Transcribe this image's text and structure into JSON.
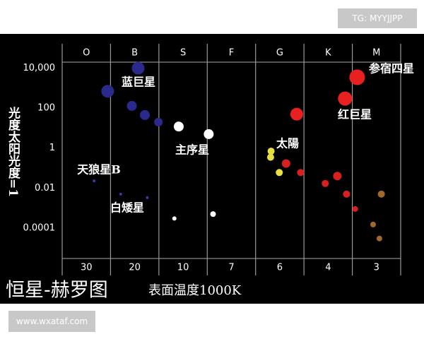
{
  "header": {
    "tag": "TG: MYYJJPP"
  },
  "footer": {
    "site": "www.wxataf.com"
  },
  "chart_data": {
    "type": "scatter",
    "title": "恒星-赫罗图",
    "x_label": "表面温度1000K",
    "y_label": "光度太阳光度=1",
    "categories": [
      "O",
      "B",
      "S",
      "F",
      "G",
      "K",
      "M"
    ],
    "temperatures": [
      30,
      20,
      10,
      7,
      6,
      4,
      3
    ],
    "xlim": [
      0,
      7
    ],
    "xticks": [
      0,
      1,
      2,
      3,
      4,
      5,
      6,
      7
    ],
    "ylim": [
      3e-06,
      20000
    ],
    "log_scale": true,
    "yticks": [
      {
        "value": 10000,
        "label": "10,000"
      },
      100,
      1,
      0.01,
      0.0001
    ],
    "annotations": [
      "蓝巨星",
      "参宿四星",
      "红巨星",
      "太陽",
      "主序星",
      "天狼星B",
      "白矮星"
    ],
    "series": [
      {
        "color": "#2a2a8c",
        "x": [
          0.94,
          1.57,
          1.44,
          1.71,
          1.99
        ],
        "values": [
          700,
          10000,
          130,
          45,
          20
        ],
        "sizes": [
          9,
          9,
          7,
          7,
          6
        ]
      },
      {
        "color": "#3a3aa8",
        "x": [
          0.66,
          1.21,
          1.76
        ],
        "values": [
          0.023,
          0.005,
          0.0033
        ],
        "sizes": [
          2,
          2,
          2
        ]
      },
      {
        "color": "#ffffff",
        "x": [
          2.41,
          3.03,
          2.32,
          3.12
        ],
        "values": [
          12,
          5,
          0.0003,
          0.0005
        ],
        "sizes": [
          7,
          7,
          3,
          4
        ]
      },
      {
        "color": "#e82020",
        "x": [
          4.85,
          5.85,
          6.1
        ],
        "values": [
          50,
          300,
          3500
        ],
        "sizes": [
          9,
          10,
          11
        ]
      },
      {
        "color": "#e8e040",
        "x": [
          4.32,
          4.31,
          4.49
        ],
        "values": [
          0.7,
          0.35,
          0.06
        ],
        "sizes": [
          5,
          5,
          5
        ]
      },
      {
        "color": "#d82020",
        "x": [
          4.63,
          4.93,
          5.44,
          5.69,
          5.88,
          6.06
        ],
        "values": [
          0.17,
          0.06,
          0.017,
          0.04,
          0.005,
          0.0009
        ],
        "sizes": [
          6,
          5,
          5,
          6,
          5,
          4
        ]
      },
      {
        "color": "#a0682a",
        "x": [
          6.6,
          6.43,
          6.56
        ],
        "values": [
          0.005,
          0.00015,
          3e-05
        ],
        "sizes": [
          5,
          4,
          4
        ]
      }
    ]
  }
}
